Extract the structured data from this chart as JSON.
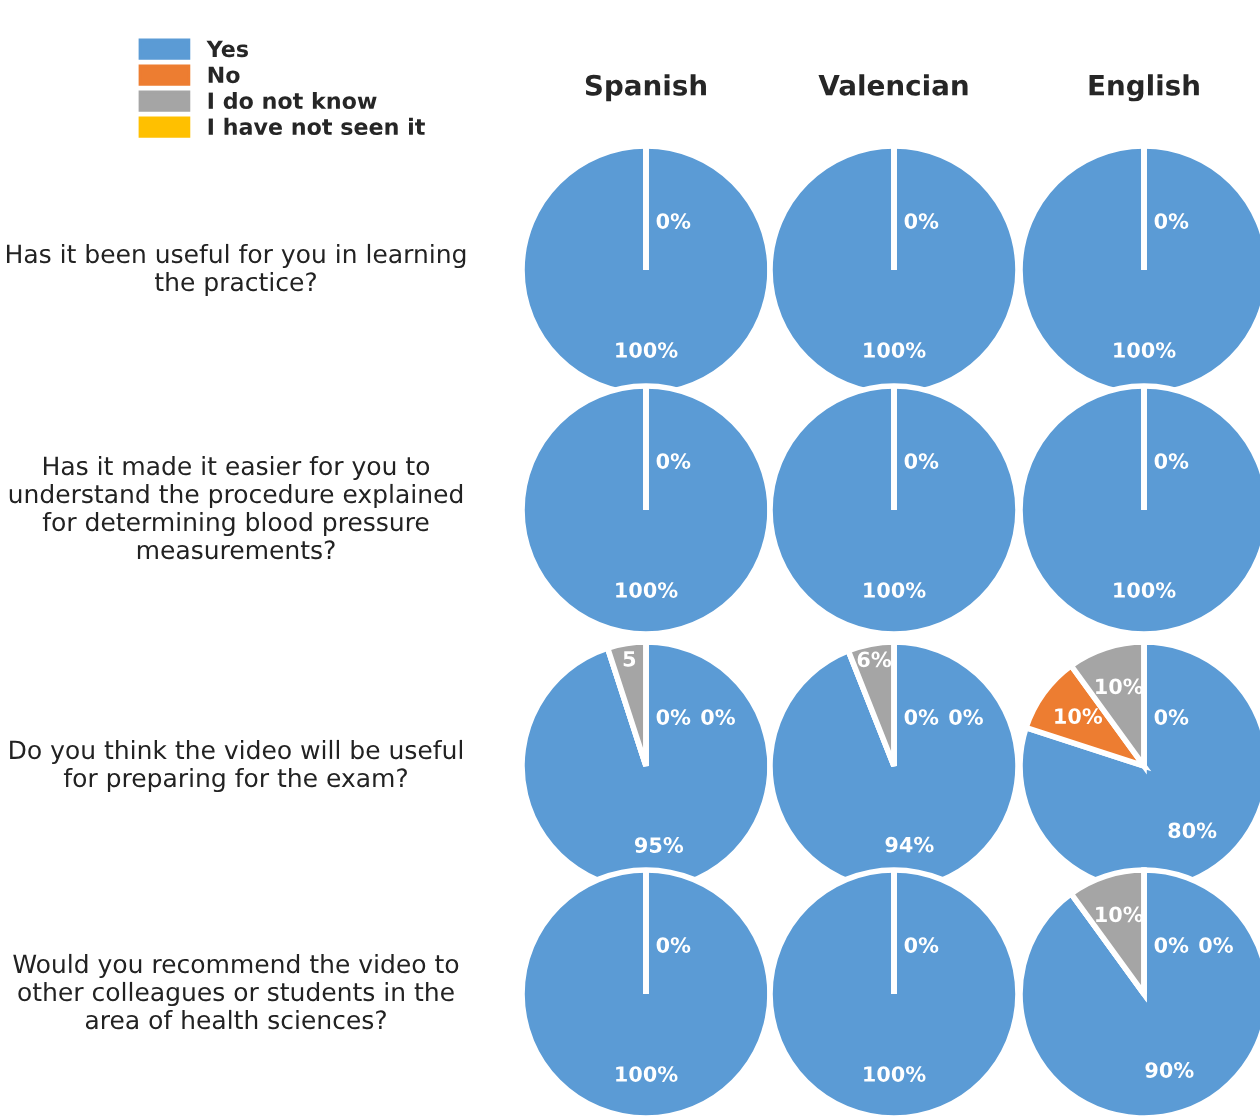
{
  "chart_data": [
    {
      "type": "pie",
      "title": "Spanish",
      "ylabel": "Has it been useful for you in learning the practice?",
      "categories": [
        "Yes",
        "No",
        "I do not know",
        "I have not seen it"
      ],
      "values": [
        100,
        0,
        0,
        0
      ],
      "colors": [
        "#5b9bd5",
        "#ed7d31",
        "#a5a5a5",
        "#ffc000"
      ],
      "value_labels": [
        "100%",
        "0%",
        null,
        null
      ],
      "legend": "top left"
    },
    {
      "type": "pie",
      "title": "Valencian",
      "categories": [
        null,
        null,
        null,
        null
      ],
      "values": [
        100,
        0,
        0,
        0
      ],
      "colors": [
        "#5b9bd5",
        "#ed7d31",
        "#a5a5a5",
        "#ffc000"
      ],
      "value_labels": [
        "100%",
        "0%",
        null,
        null
      ]
    },
    {
      "type": "pie",
      "title": "English",
      "categories": [
        null,
        null,
        null,
        null
      ],
      "values": [
        100,
        0,
        0,
        0
      ],
      "colors": [
        "#5b9bd5",
        "#ed7d31",
        "#a5a5a5",
        "#ffc000"
      ],
      "value_labels": [
        "100%",
        "0%",
        null,
        null
      ]
    },
    {
      "type": "pie",
      "ylabel": "Has it made it easier for you to understand the procedure explained for determining blood pressure measurements?",
      "categories": [
        null,
        null,
        null,
        null
      ],
      "values": [
        100,
        0,
        0,
        0
      ],
      "colors": [
        "#5b9bd5",
        "#ed7d31",
        "#a5a5a5",
        "#ffc000"
      ],
      "value_labels": [
        "100%",
        "0%",
        null,
        null
      ]
    },
    {
      "type": "pie",
      "categories": [
        null,
        null,
        null,
        null
      ],
      "values": [
        100,
        0,
        0,
        0
      ],
      "colors": [
        "#5b9bd5",
        "#ed7d31",
        "#a5a5a5",
        "#ffc000"
      ],
      "value_labels": [
        "100%",
        "0%",
        null,
        null
      ]
    },
    {
      "type": "pie",
      "categories": [
        null,
        null,
        null,
        null
      ],
      "values": [
        100,
        0,
        0,
        0
      ],
      "colors": [
        "#5b9bd5",
        "#ed7d31",
        "#a5a5a5",
        "#ffc000"
      ],
      "value_labels": [
        "100%",
        "0%",
        null,
        null
      ]
    },
    {
      "type": "pie",
      "ylabel": "Do you think the video will be useful for preparing for the exam?",
      "categories": [
        null,
        null,
        null,
        null
      ],
      "values": [
        95,
        0,
        5,
        0
      ],
      "colors": [
        "#5b9bd5",
        "#ed7d31",
        "#a5a5a5",
        "#ffc000"
      ],
      "value_labels": [
        "95%",
        "0%",
        "5",
        "0%"
      ]
    },
    {
      "type": "pie",
      "categories": [
        null,
        null,
        null,
        null
      ],
      "values": [
        94,
        0,
        6,
        0
      ],
      "colors": [
        "#5b9bd5",
        "#ed7d31",
        "#a5a5a5",
        "#ffc000"
      ],
      "value_labels": [
        "94%",
        "0%",
        "6%",
        "0%"
      ]
    },
    {
      "type": "pie",
      "categories": [
        null,
        null,
        null,
        null
      ],
      "values": [
        80,
        10,
        10,
        0
      ],
      "colors": [
        "#5b9bd5",
        "#ed7d31",
        "#a5a5a5",
        "#ffc000"
      ],
      "value_labels": [
        "80%",
        "10%",
        "10%",
        "0%"
      ]
    },
    {
      "type": "pie",
      "ylabel": "Would you recommend the video to other colleagues or students in the area of health sciences?",
      "categories": [
        null,
        null,
        null,
        null
      ],
      "values": [
        100,
        0,
        0,
        0
      ],
      "colors": [
        "#5b9bd5",
        "#ed7d31",
        "#a5a5a5",
        "#ffc000"
      ],
      "value_labels": [
        "100%",
        "0%",
        null,
        null
      ]
    },
    {
      "type": "pie",
      "categories": [
        null,
        null,
        null,
        null
      ],
      "values": [
        100,
        0,
        0,
        0
      ],
      "colors": [
        "#5b9bd5",
        "#ed7d31",
        "#a5a5a5",
        "#ffc000"
      ],
      "value_labels": [
        "100%",
        "0%",
        null,
        null
      ]
    },
    {
      "type": "pie",
      "categories": [
        null,
        null,
        null,
        null
      ],
      "values": [
        90,
        0,
        10,
        0
      ],
      "colors": [
        "#5b9bd5",
        "#ed7d31",
        "#a5a5a5",
        "#ffc000"
      ],
      "value_labels": [
        "90%",
        "0%",
        "10%",
        "0%"
      ]
    }
  ]
}
